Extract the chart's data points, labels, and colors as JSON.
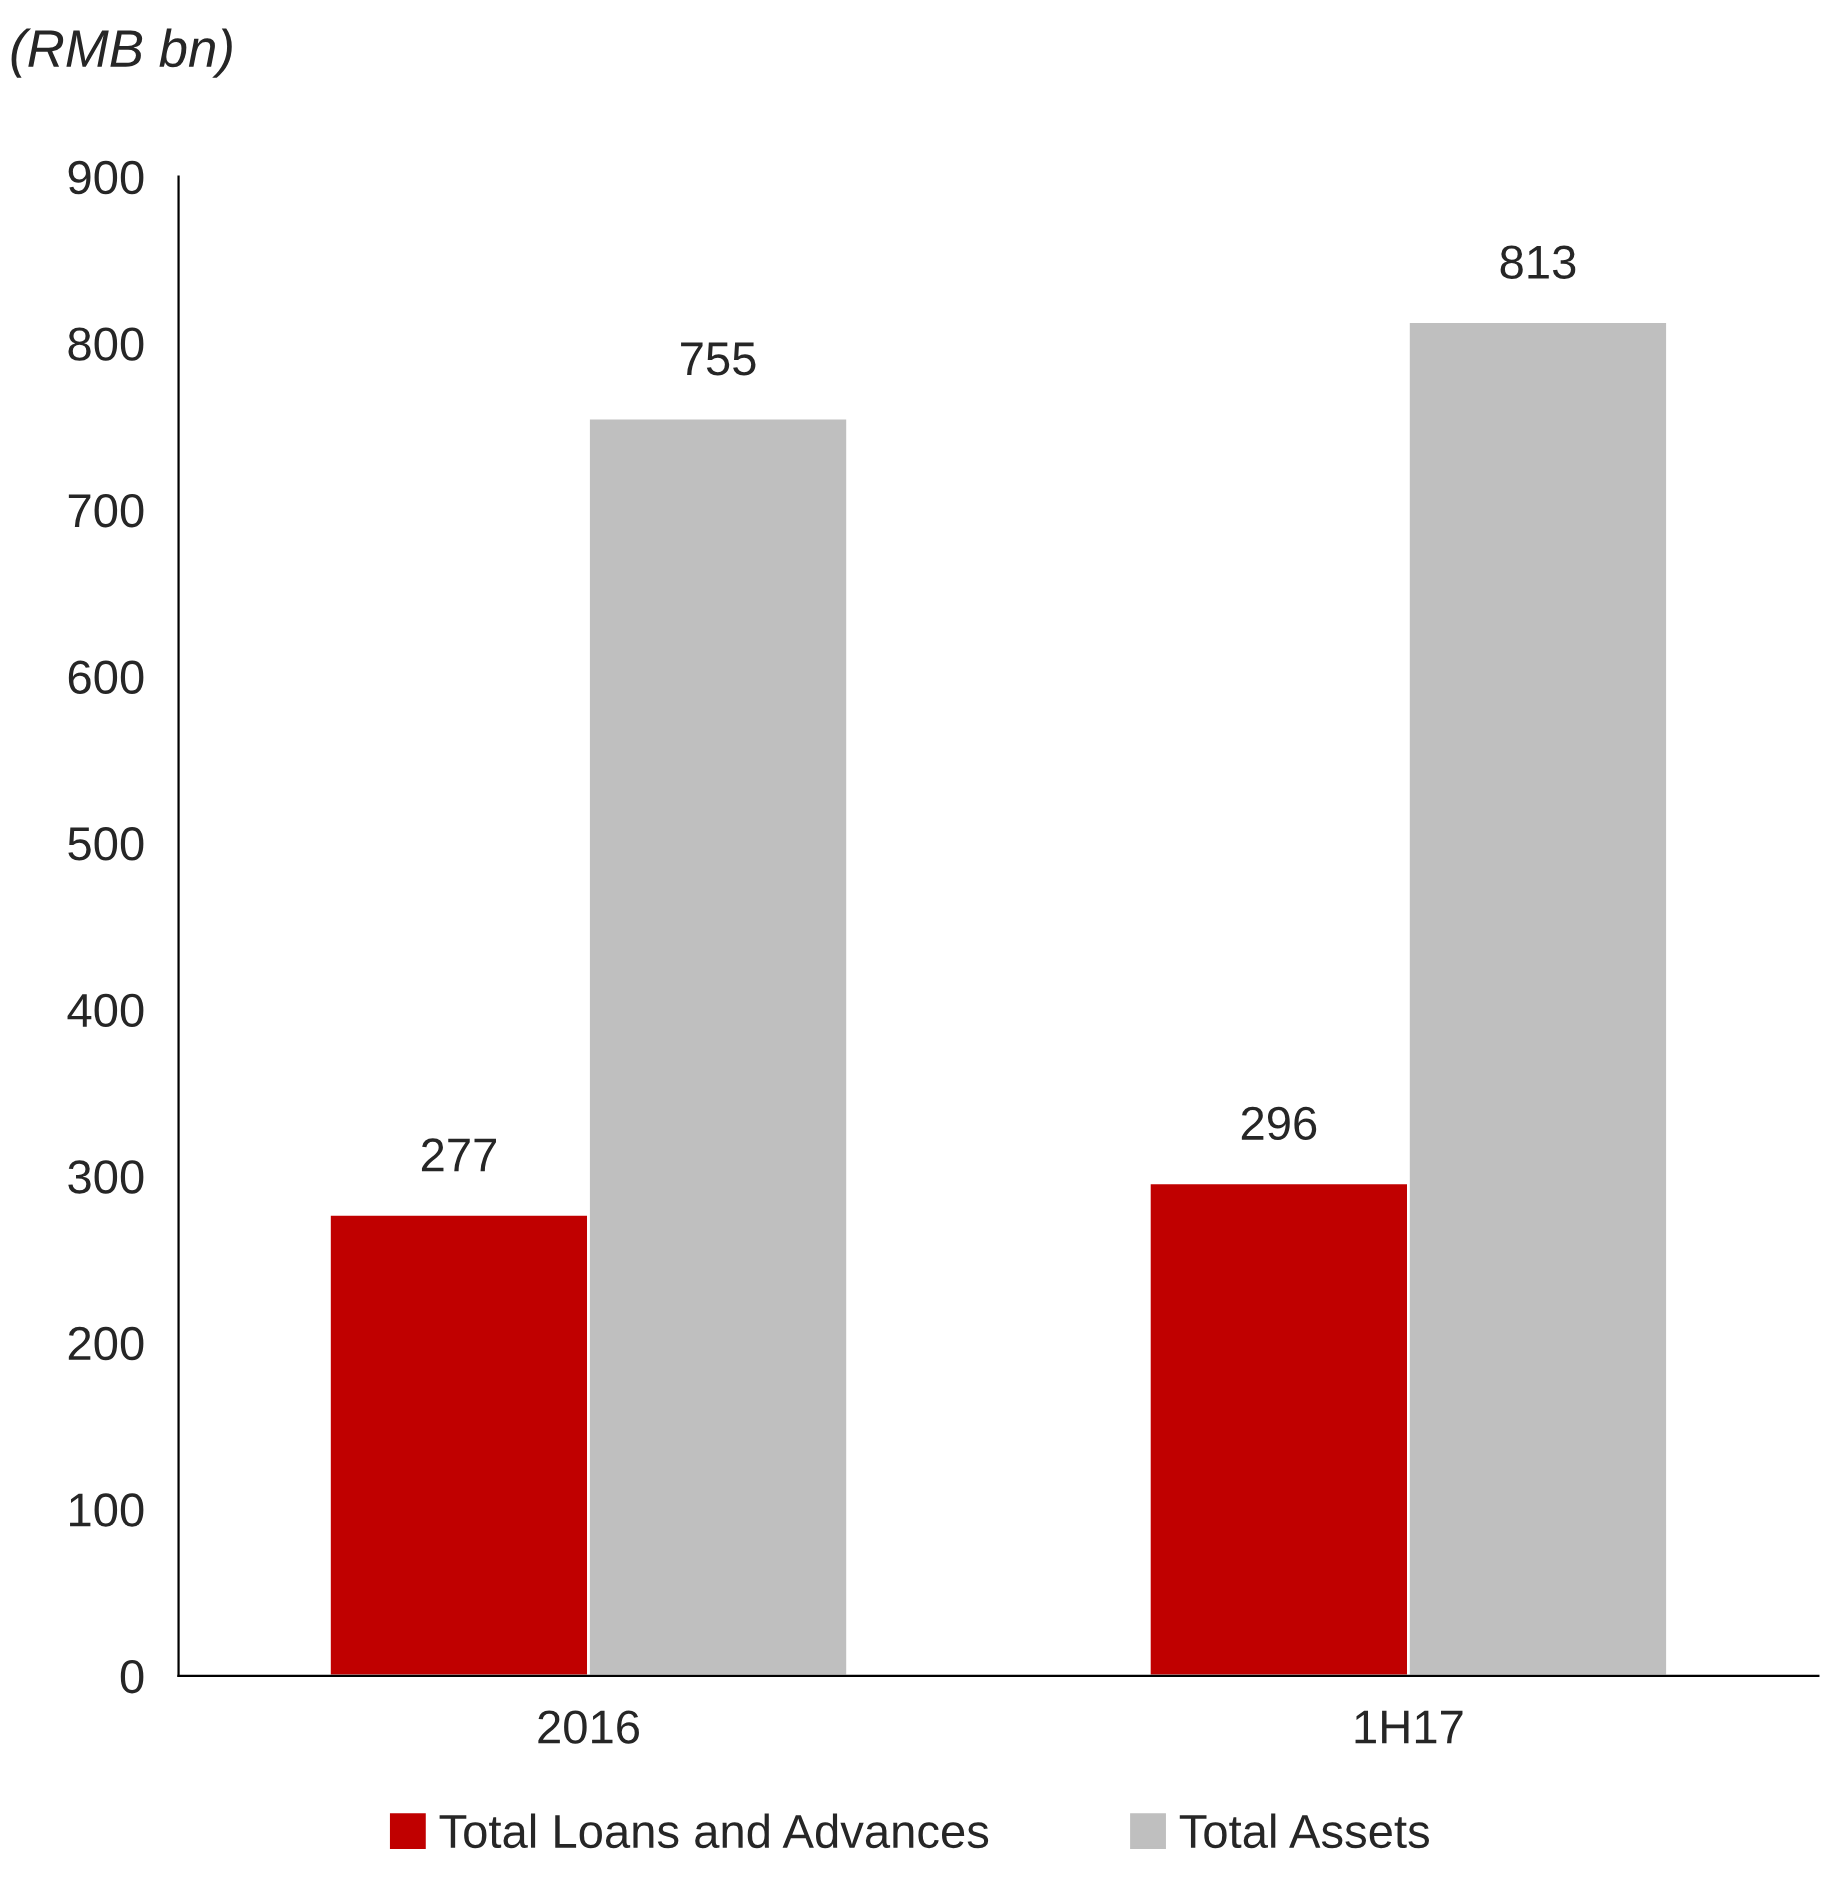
{
  "chart_data": {
    "type": "bar",
    "title": "(RMB bn)",
    "categories": [
      "2016",
      "1H17"
    ],
    "series": [
      {
        "name": "Total Loans and Advances",
        "color": "#c00000",
        "values": [
          277,
          296
        ]
      },
      {
        "name": "Total Assets",
        "color": "#bfbfbf",
        "values": [
          755,
          813
        ]
      }
    ],
    "ylim": [
      0,
      900
    ],
    "yticks": [
      0,
      100,
      200,
      300,
      400,
      500,
      600,
      700,
      800,
      900
    ],
    "data_labels": true,
    "legend": "bottom",
    "grid": false
  }
}
